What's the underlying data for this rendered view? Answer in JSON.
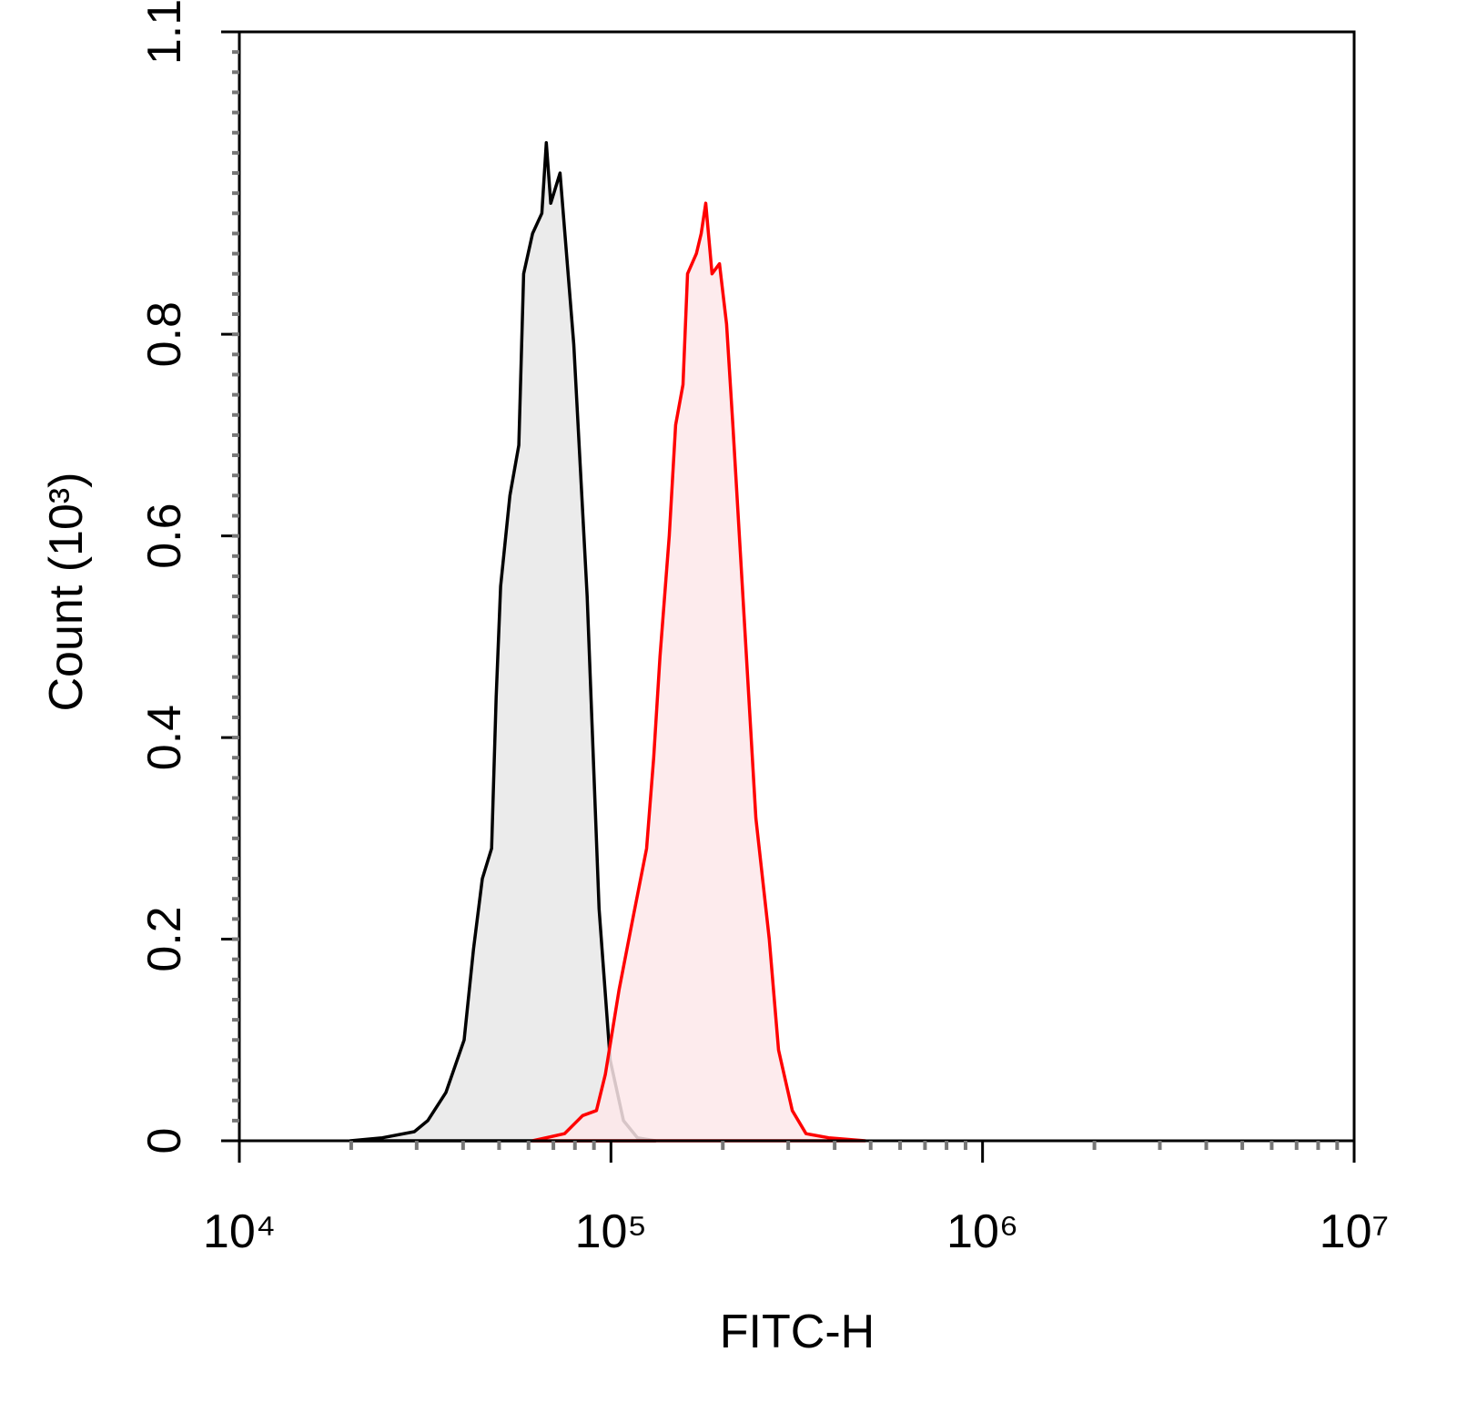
{
  "chart_data": {
    "type": "histogram-overlay",
    "xlabel": "FITC-H",
    "ylabel": "Count (10³)",
    "xscale": "log",
    "xlim": [
      10000,
      10000000
    ],
    "xticks": [
      {
        "value": 10000,
        "label": "10⁴"
      },
      {
        "value": 100000,
        "label": "10⁵"
      },
      {
        "value": 1000000,
        "label": "10⁶"
      },
      {
        "value": 10000000,
        "label": "10⁷"
      }
    ],
    "ylim": [
      0,
      1.1
    ],
    "yticks": [
      0,
      0.2,
      0.4,
      0.6,
      0.8,
      1.1
    ],
    "series": [
      {
        "color": "#000000",
        "fill": "#e8e8e8",
        "x": [
          19900,
          24270,
          29580,
          32140,
          35970,
          40270,
          42660,
          45080,
          47750,
          49090,
          50470,
          53460,
          56490,
          58210,
          61520,
          65160,
          66990,
          68870,
          72950,
          79430,
          86300,
          92900,
          99540,
          108100,
          117800,
          131800
        ],
        "values": [
          0,
          0.003,
          0.009,
          0.02,
          0.048,
          0.1,
          0.19,
          0.26,
          0.29,
          0.44,
          0.55,
          0.64,
          0.69,
          0.86,
          0.9,
          0.92,
          0.99,
          0.93,
          0.96,
          0.79,
          0.54,
          0.23,
          0.08,
          0.02,
          0.003,
          0
        ]
      },
      {
        "color": "#ff0000",
        "fill": "#fde8ea",
        "x": [
          61520,
          74990,
          83950,
          91410,
          96610,
          105200,
          114500,
          124700,
          130300,
          135500,
          143500,
          149300,
          156300,
          160700,
          169800,
          174900,
          179900,
          187100,
          195900,
          204700,
          212800,
          229100,
          245500,
          266700,
          282500,
          307600,
          334900,
          385500,
          483100
        ],
        "values": [
          0,
          0.007,
          0.025,
          0.03,
          0.066,
          0.15,
          0.22,
          0.29,
          0.38,
          0.48,
          0.6,
          0.71,
          0.75,
          0.86,
          0.88,
          0.9,
          0.93,
          0.86,
          0.87,
          0.81,
          0.71,
          0.51,
          0.32,
          0.2,
          0.09,
          0.03,
          0.007,
          0.003,
          0
        ]
      }
    ]
  }
}
